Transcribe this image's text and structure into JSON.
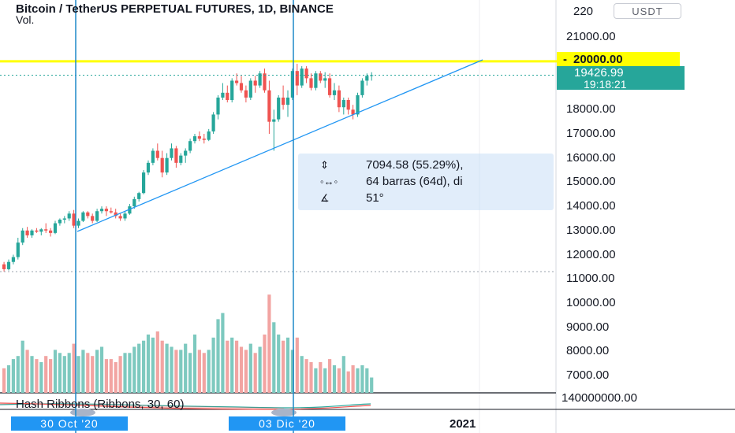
{
  "header": {
    "title": "Bitcoin / TetherUS PERPETUAL FUTURES, 1D, BINANCE",
    "volume_label": "Vol."
  },
  "currency_button": "USDT",
  "price_axis": {
    "partial_top_label": "220",
    "labels": [
      "21000.00",
      "18000.00",
      "17000.00",
      "16000.00",
      "15000.00",
      "14000.00",
      "13000.00",
      "12000.00",
      "11000.00",
      "10000.00",
      "9000.00",
      "8000.00",
      "7000.00"
    ],
    "horizontal_line_label": "20000.00",
    "current_price": "19426.99",
    "bar_countdown": "19:18:21",
    "volume_axis_label": "140000000.00"
  },
  "measure_tool": {
    "price_range": "7094.58 (55.29%),",
    "bars_range": "64 barras (64d), di",
    "angle": "51°"
  },
  "indicator": {
    "label": "Hash Ribbons (Ribbons, 30, 60)"
  },
  "time_axis": {
    "date_tag_1": "30 Oct '20",
    "date_tag_2": "03 Dic '20",
    "year_label": "2021"
  },
  "colors": {
    "up": "#26a69a",
    "down": "#ef5350",
    "up_volume": "#7dc9bf",
    "down_volume": "#f2a4a2",
    "horizontal_line": "#ffff00",
    "trendline": "#2196f3",
    "vertical_lines": "#1e88c8"
  },
  "chart_data": {
    "type": "candlestick",
    "symbol": "BTCUSDT",
    "interval": "1D",
    "candles": [
      [
        11600,
        11700,
        11300,
        11400
      ],
      [
        11400,
        11800,
        11350,
        11700
      ],
      [
        11700,
        12000,
        11600,
        11900
      ],
      [
        11900,
        12700,
        11800,
        12500
      ],
      [
        12500,
        13100,
        12400,
        13000
      ],
      [
        13000,
        13150,
        12700,
        12800
      ],
      [
        12800,
        13050,
        12700,
        13000
      ],
      [
        13000,
        13100,
        12900,
        12950
      ],
      [
        12950,
        13100,
        12800,
        13050
      ],
      [
        13050,
        13300,
        12900,
        13000
      ],
      [
        13000,
        13100,
        12750,
        12900
      ],
      [
        12900,
        13400,
        12850,
        13300
      ],
      [
        13300,
        13500,
        13200,
        13450
      ],
      [
        13450,
        13600,
        13300,
        13500
      ],
      [
        13500,
        13800,
        13400,
        13700
      ],
      [
        13700,
        13850,
        13100,
        13200
      ],
      [
        13200,
        13500,
        13100,
        13400
      ],
      [
        13400,
        13800,
        13350,
        13750
      ],
      [
        13750,
        13800,
        13500,
        13600
      ],
      [
        13600,
        13700,
        13300,
        13400
      ],
      [
        13400,
        13900,
        13350,
        13800
      ],
      [
        13800,
        14000,
        13700,
        13900
      ],
      [
        13900,
        14000,
        13600,
        13800
      ],
      [
        13800,
        13950,
        13700,
        13750
      ],
      [
        13750,
        13900,
        13500,
        13600
      ],
      [
        13600,
        13700,
        13400,
        13500
      ],
      [
        13500,
        13800,
        13400,
        13700
      ],
      [
        13700,
        14100,
        13650,
        14000
      ],
      [
        14000,
        14400,
        13900,
        14300
      ],
      [
        14300,
        14600,
        14200,
        14550
      ],
      [
        14550,
        15500,
        14500,
        15400
      ],
      [
        15400,
        15900,
        15300,
        15800
      ],
      [
        15800,
        16400,
        15700,
        16300
      ],
      [
        16300,
        16600,
        15900,
        16000
      ],
      [
        16000,
        16300,
        15200,
        15400
      ],
      [
        15400,
        16200,
        15300,
        16000
      ],
      [
        16000,
        16600,
        15900,
        16400
      ],
      [
        16400,
        16500,
        15600,
        15800
      ],
      [
        15800,
        16200,
        15700,
        16100
      ],
      [
        16100,
        16400,
        15800,
        16300
      ],
      [
        16300,
        16800,
        16200,
        16700
      ],
      [
        16700,
        17000,
        16600,
        16900
      ],
      [
        16900,
        17100,
        16700,
        16800
      ],
      [
        16800,
        17000,
        16600,
        16750
      ],
      [
        16750,
        17200,
        16700,
        17100
      ],
      [
        17100,
        17900,
        17000,
        17800
      ],
      [
        17800,
        18600,
        17600,
        18500
      ],
      [
        18500,
        19100,
        18400,
        18700
      ],
      [
        18700,
        19000,
        18300,
        18400
      ],
      [
        18400,
        19300,
        18300,
        19200
      ],
      [
        19200,
        19500,
        19000,
        19100
      ],
      [
        19100,
        19400,
        18700,
        18800
      ],
      [
        18800,
        19000,
        18300,
        18500
      ],
      [
        18500,
        19300,
        18400,
        19200
      ],
      [
        19200,
        19400,
        18700,
        19000
      ],
      [
        19000,
        19600,
        18900,
        19500
      ],
      [
        19500,
        19700,
        18700,
        18800
      ],
      [
        18800,
        19200,
        17000,
        17500
      ],
      [
        17500,
        18000,
        16300,
        17600
      ],
      [
        17600,
        18600,
        17500,
        18500
      ],
      [
        18500,
        19000,
        18000,
        18200
      ],
      [
        18200,
        18800,
        17700,
        18500
      ],
      [
        18500,
        19700,
        18400,
        19600
      ],
      [
        19600,
        19900,
        18600,
        19000
      ],
      [
        19000,
        19800,
        18900,
        19700
      ],
      [
        19700,
        19800,
        19100,
        19300
      ],
      [
        19300,
        19500,
        18800,
        18900
      ],
      [
        18900,
        19600,
        18800,
        19500
      ],
      [
        19500,
        19600,
        19100,
        19200
      ],
      [
        19200,
        19550,
        18900,
        19300
      ],
      [
        19300,
        19500,
        18500,
        18600
      ],
      [
        18600,
        19100,
        18400,
        18800
      ],
      [
        18800,
        19000,
        17900,
        18100
      ],
      [
        18100,
        18500,
        17800,
        18400
      ],
      [
        18400,
        18500,
        17800,
        18000
      ],
      [
        18000,
        18200,
        17600,
        17800
      ],
      [
        17800,
        18700,
        17700,
        18600
      ],
      [
        18600,
        19300,
        18500,
        19200
      ],
      [
        19200,
        19500,
        19000,
        19400
      ],
      [
        19400,
        19550,
        19200,
        19427
      ]
    ],
    "volume": [
      40,
      45,
      55,
      60,
      85,
      70,
      60,
      55,
      50,
      60,
      55,
      70,
      65,
      60,
      65,
      80,
      60,
      70,
      65,
      60,
      70,
      75,
      55,
      55,
      50,
      60,
      65,
      65,
      75,
      80,
      85,
      95,
      90,
      100,
      85,
      80,
      75,
      70,
      70,
      80,
      65,
      95,
      70,
      65,
      70,
      90,
      120,
      130,
      85,
      90,
      85,
      75,
      70,
      80,
      65,
      75,
      95,
      160,
      115,
      95,
      85,
      90,
      70,
      90,
      60,
      55,
      50,
      40,
      50,
      40,
      55,
      45,
      40,
      60,
      35,
      45,
      40,
      45,
      40,
      25
    ],
    "horizontal_line": 20000,
    "current_price": 19426.99,
    "yrange": [
      6500,
      22200
    ]
  }
}
